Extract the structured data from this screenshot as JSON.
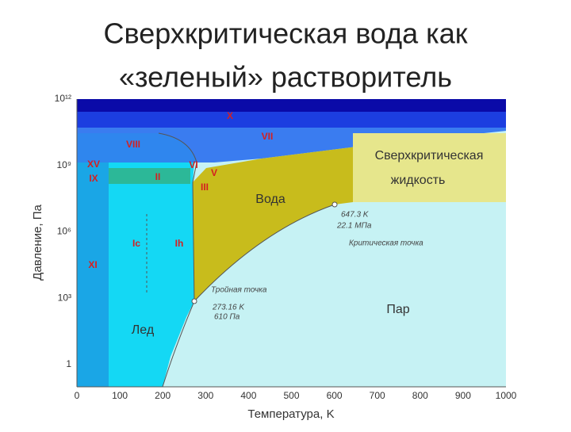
{
  "title": [
    "Сверхкритическая вода как",
    "«зеленый» растворитель"
  ],
  "axes": {
    "x_label": "Температура, K",
    "y_label": "Давление, Па",
    "x_ticks": [
      "0",
      "100",
      "200",
      "300",
      "400",
      "500",
      "600",
      "700",
      "800",
      "900",
      "1000"
    ],
    "y_ticks": [
      "10¹²",
      "10⁹",
      "10⁶",
      "10³",
      "1"
    ]
  },
  "phases": [
    "X",
    "VII",
    "VIII",
    "XV",
    "IX",
    "II",
    "VI",
    "V",
    "III",
    "Ic",
    "Ih",
    "XI"
  ],
  "regions": {
    "ice": "Лед",
    "water": "Вода",
    "vapor": "Пар",
    "supercritical": [
      "Сверхкритическая",
      "жидкость"
    ]
  },
  "critical_point": {
    "label": "Критическая точка",
    "temperature": "647.3 K",
    "pressure": "22.1 МПа"
  },
  "triple_point": {
    "label": "Тройная точка",
    "temperature": "273.16 K",
    "pressure": "610 Па"
  }
}
